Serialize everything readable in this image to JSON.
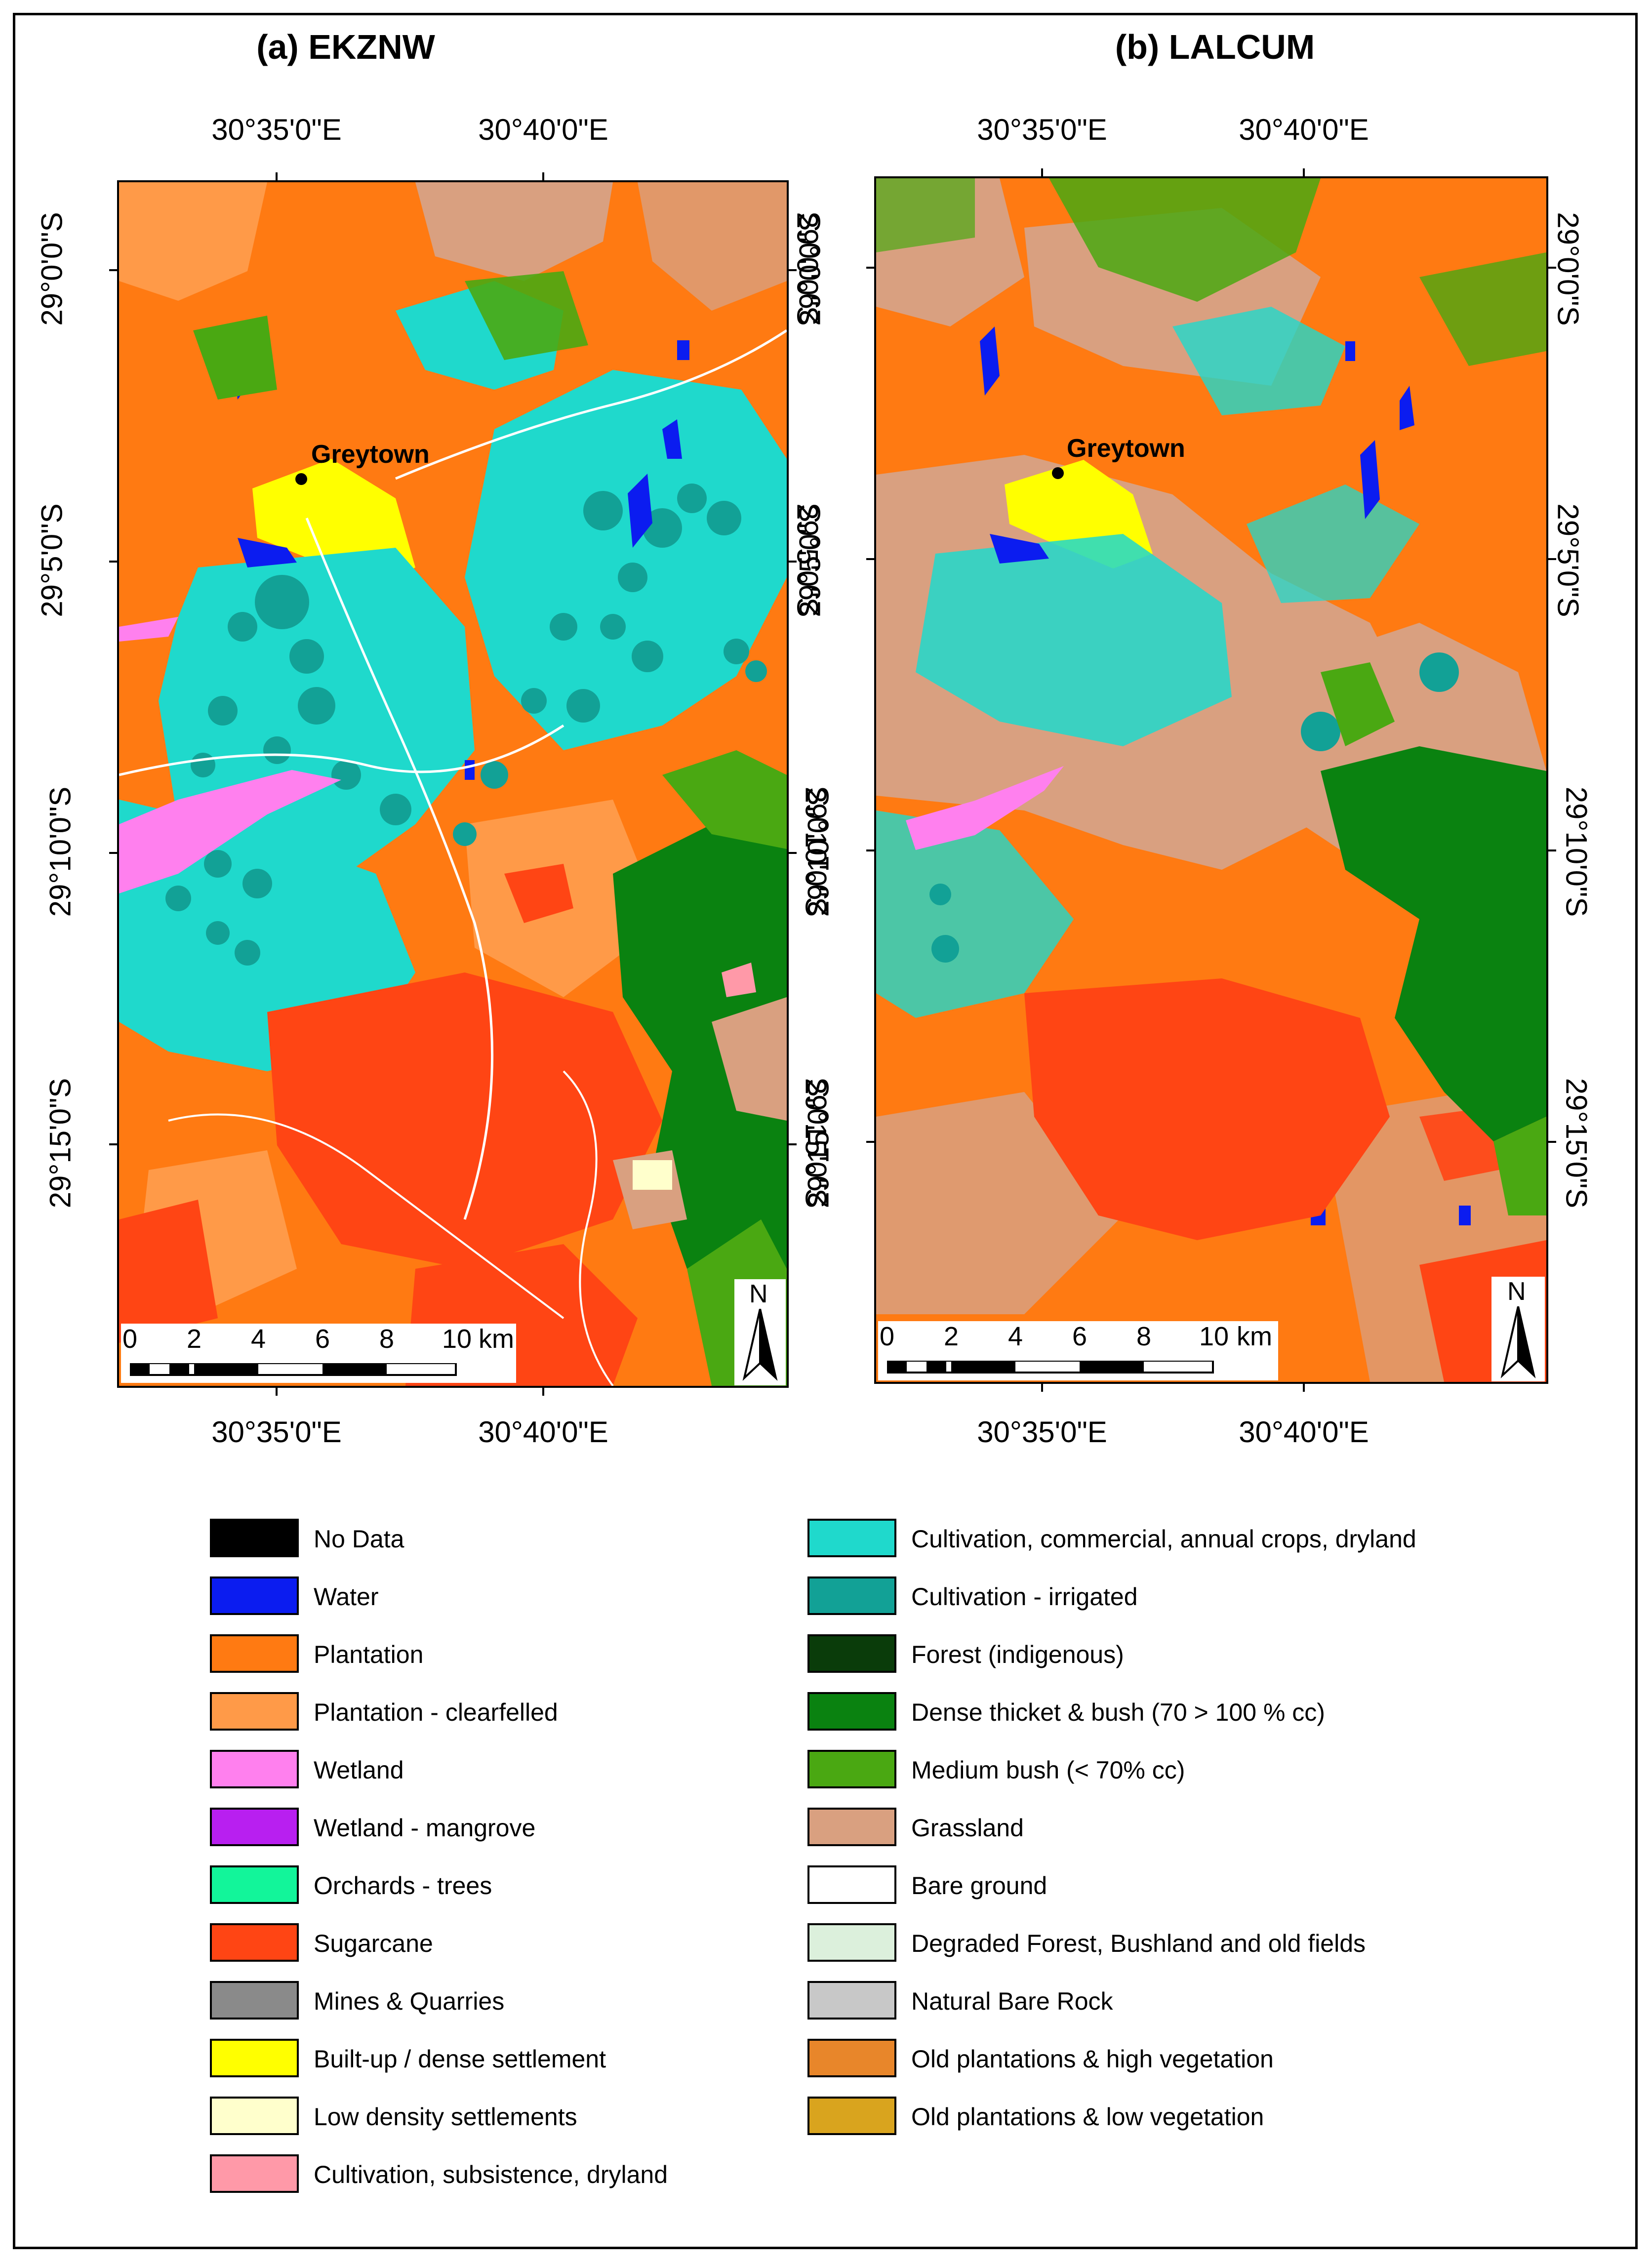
{
  "colors": {
    "plantation": "#ff7a12",
    "plantation_clearfelled": "#ff9a48",
    "cultivation_dryland": "#1fd9cc",
    "cultivation_irrigated": "#12a196",
    "water": "#0b1cf0",
    "wetland": "#ff80ee",
    "sugarcane": "#ff4514",
    "grassland": "#d9a080",
    "built_up": "#ffff00",
    "low_density": "#ffffcc",
    "dense_thicket": "#0a8210",
    "medium_bush": "#4aa812",
    "forest": "#0a3c0a"
  },
  "panels": [
    {
      "title": "(a) EKZNW",
      "town": "Greytown",
      "lon_labels": [
        "30°35'0\"E",
        "30°40'0\"E"
      ],
      "lat_labels": [
        "29°0'0\"S",
        "29°5'0\"S",
        "29°10'0\"S",
        "29°15'0\"S"
      ],
      "scale_labels": [
        "0",
        "2",
        "4",
        "6",
        "8",
        "10"
      ],
      "scale_unit": "km",
      "north_label": "N"
    },
    {
      "title": "(b) LALCUM",
      "town": "Greytown",
      "lon_labels": [
        "30°35'0\"E",
        "30°40'0\"E"
      ],
      "lat_labels": [
        "29°0'0\"S",
        "29°5'0\"S",
        "29°10'0\"S",
        "29°15'0\"S"
      ],
      "scale_labels": [
        "0",
        "2",
        "4",
        "6",
        "8",
        "10"
      ],
      "scale_unit": "km",
      "north_label": "N"
    }
  ],
  "legend": {
    "left": [
      {
        "label": "No Data",
        "color": "#000000"
      },
      {
        "label": "Water",
        "color": "#0b1cf0"
      },
      {
        "label": "Plantation",
        "color": "#ff7a12"
      },
      {
        "label": "Plantation - clearfelled",
        "color": "#ff9a48"
      },
      {
        "label": "Wetland",
        "color": "#ff80ee"
      },
      {
        "label": "Wetland - mangrove",
        "color": "#b81ff0"
      },
      {
        "label": "Orchards - trees",
        "color": "#12f59a"
      },
      {
        "label": "Sugarcane",
        "color": "#ff4514"
      },
      {
        "label": "Mines & Quarries",
        "color": "#8a8a8a"
      },
      {
        "label": "Built-up / dense settlement",
        "color": "#ffff00"
      },
      {
        "label": "Low density settlements",
        "color": "#ffffcc"
      },
      {
        "label": "Cultivation, subsistence, dryland",
        "color": "#ff99a8"
      }
    ],
    "right": [
      {
        "label": "Cultivation, commercial, annual crops, dryland",
        "color": "#1fd9cc"
      },
      {
        "label": "Cultivation - irrigated",
        "color": "#12a196"
      },
      {
        "label": "Forest (indigenous)",
        "color": "#0a3c0a"
      },
      {
        "label": "Dense thicket & bush (70 > 100 % cc)",
        "color": "#0a8210"
      },
      {
        "label": "Medium bush (< 70% cc)",
        "color": "#4aa812"
      },
      {
        "label": "Grassland",
        "color": "#d9a080"
      },
      {
        "label": "Bare ground",
        "color": "#ffffff"
      },
      {
        "label": "Degraded Forest, Bushland and old fields",
        "color": "#dcf0dc"
      },
      {
        "label": "Natural Bare Rock",
        "color": "#c8c8c8"
      },
      {
        "label": "Old plantations & high vegetation",
        "color": "#e8862a"
      },
      {
        "label": "Old plantations & low vegetation",
        "color": "#d9a41e"
      }
    ]
  }
}
